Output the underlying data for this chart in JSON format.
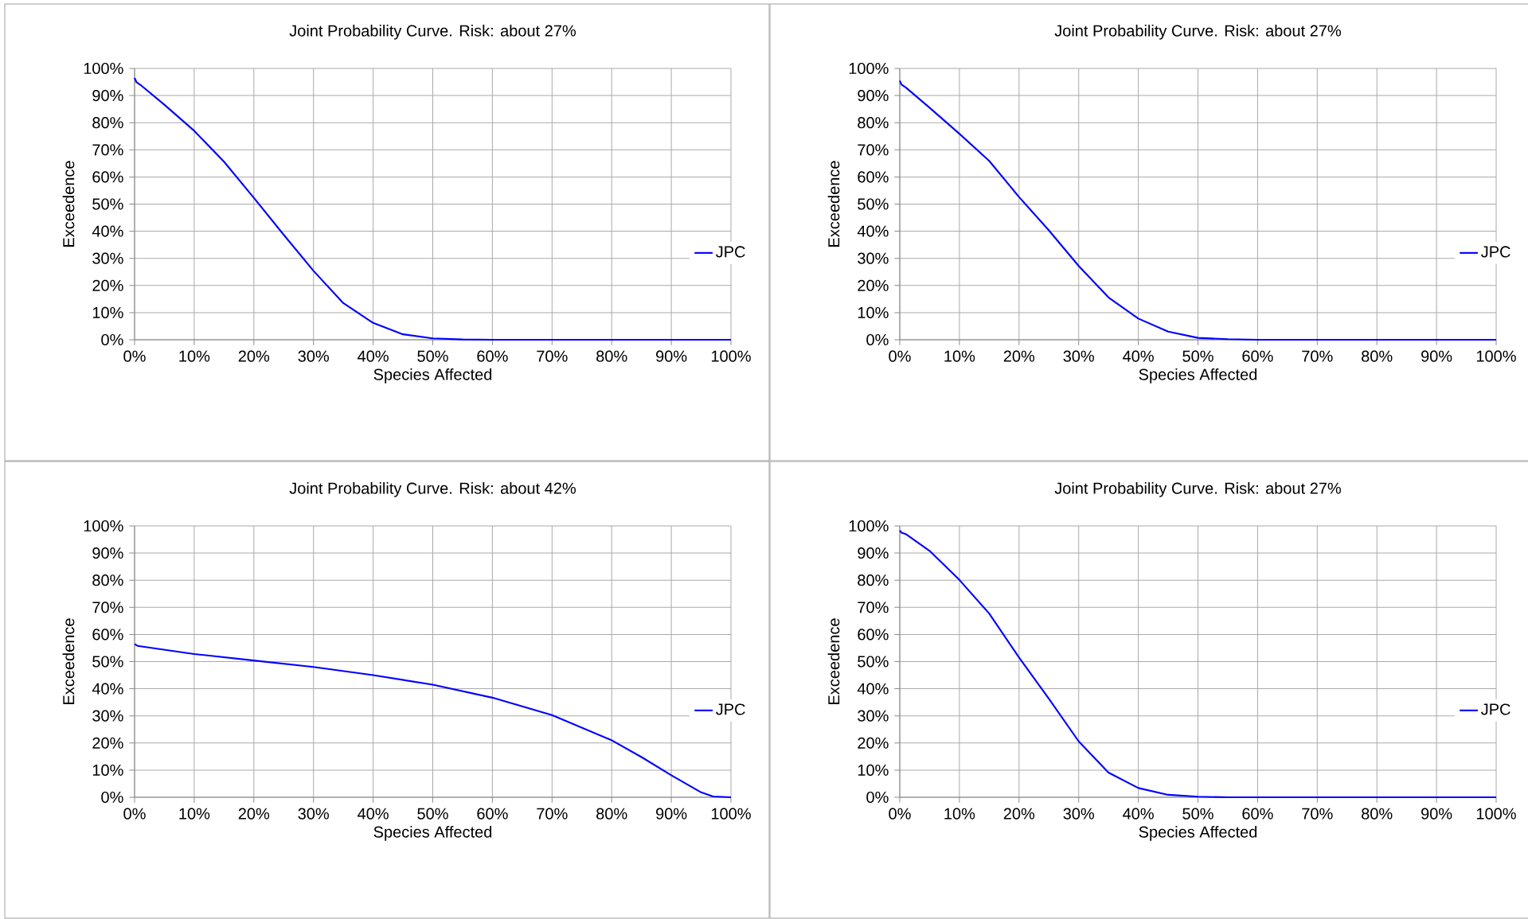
{
  "chart_data": [
    {
      "type": "line",
      "title": "Joint Probability Curve. Risk: about 27%",
      "xlabel": "Species Affected",
      "ylabel": "Exceedence",
      "xlim": [
        0,
        100
      ],
      "ylim": [
        0,
        100
      ],
      "xticks": [
        {
          "value": 0,
          "label": "0%"
        },
        {
          "value": 10,
          "label": "10%"
        },
        {
          "value": 20,
          "label": "20%"
        },
        {
          "value": 30,
          "label": "30%"
        },
        {
          "value": 40,
          "label": "40%"
        },
        {
          "value": 50,
          "label": "50%"
        },
        {
          "value": 60,
          "label": "60%"
        },
        {
          "value": 70,
          "label": "70%"
        },
        {
          "value": 80,
          "label": "80%"
        },
        {
          "value": 90,
          "label": "90%"
        },
        {
          "value": 100,
          "label": "100%"
        }
      ],
      "yticks": [
        {
          "value": 0,
          "label": "0%"
        },
        {
          "value": 10,
          "label": "10%"
        },
        {
          "value": 20,
          "label": "20%"
        },
        {
          "value": 30,
          "label": "30%"
        },
        {
          "value": 40,
          "label": "40%"
        },
        {
          "value": 50,
          "label": "50%"
        },
        {
          "value": 60,
          "label": "60%"
        },
        {
          "value": 70,
          "label": "70%"
        },
        {
          "value": 80,
          "label": "80%"
        },
        {
          "value": 90,
          "label": "90%"
        },
        {
          "value": 100,
          "label": "100%"
        }
      ],
      "grid": true,
      "legend": "right",
      "series": [
        {
          "name": "JPC",
          "color": "#0000ff",
          "x": [
            0,
            0.3,
            1,
            5,
            10,
            15,
            20,
            25,
            30,
            35,
            40,
            45,
            50,
            55,
            60,
            70,
            80,
            90,
            100
          ],
          "values": [
            96.5,
            95,
            93.9,
            86.6,
            77,
            65.6,
            52.3,
            38.7,
            25.4,
            13.5,
            6.2,
            2,
            0.5,
            0.1,
            0,
            0,
            0,
            0,
            0
          ]
        }
      ]
    },
    {
      "type": "line",
      "title": "Joint Probability Curve. Risk: about 27%",
      "xlabel": "Species Affected",
      "ylabel": "Exceedence",
      "xlim": [
        0,
        100
      ],
      "ylim": [
        0,
        100
      ],
      "xticks": [
        {
          "value": 0,
          "label": "0%"
        },
        {
          "value": 10,
          "label": "10%"
        },
        {
          "value": 20,
          "label": "20%"
        },
        {
          "value": 30,
          "label": "30%"
        },
        {
          "value": 40,
          "label": "40%"
        },
        {
          "value": 50,
          "label": "50%"
        },
        {
          "value": 60,
          "label": "60%"
        },
        {
          "value": 70,
          "label": "70%"
        },
        {
          "value": 80,
          "label": "80%"
        },
        {
          "value": 90,
          "label": "90%"
        },
        {
          "value": 100,
          "label": "100%"
        }
      ],
      "yticks": [
        {
          "value": 0,
          "label": "0%"
        },
        {
          "value": 10,
          "label": "10%"
        },
        {
          "value": 20,
          "label": "20%"
        },
        {
          "value": 30,
          "label": "30%"
        },
        {
          "value": 40,
          "label": "40%"
        },
        {
          "value": 50,
          "label": "50%"
        },
        {
          "value": 60,
          "label": "60%"
        },
        {
          "value": 70,
          "label": "70%"
        },
        {
          "value": 80,
          "label": "80%"
        },
        {
          "value": 90,
          "label": "90%"
        },
        {
          "value": 100,
          "label": "100%"
        }
      ],
      "grid": true,
      "legend": "right",
      "series": [
        {
          "name": "JPC",
          "color": "#0000ff",
          "x": [
            0,
            0.3,
            1,
            5,
            10,
            15,
            20,
            25,
            30,
            35,
            40,
            45,
            50,
            55,
            60,
            70,
            80,
            90,
            100
          ],
          "values": [
            95.5,
            94,
            93,
            85.5,
            75.9,
            65.9,
            52.6,
            40.3,
            27.2,
            15.6,
            7.8,
            3,
            0.7,
            0.2,
            0,
            0,
            0,
            0,
            0
          ]
        }
      ]
    },
    {
      "type": "line",
      "title": "Joint Probability Curve. Risk: about 42%",
      "xlabel": "Species Affected",
      "ylabel": "Exceedence",
      "xlim": [
        0,
        100
      ],
      "ylim": [
        0,
        100
      ],
      "xticks": [
        {
          "value": 0,
          "label": "0%"
        },
        {
          "value": 10,
          "label": "10%"
        },
        {
          "value": 20,
          "label": "20%"
        },
        {
          "value": 30,
          "label": "30%"
        },
        {
          "value": 40,
          "label": "40%"
        },
        {
          "value": 50,
          "label": "50%"
        },
        {
          "value": 60,
          "label": "60%"
        },
        {
          "value": 70,
          "label": "70%"
        },
        {
          "value": 80,
          "label": "80%"
        },
        {
          "value": 90,
          "label": "90%"
        },
        {
          "value": 100,
          "label": "100%"
        }
      ],
      "yticks": [
        {
          "value": 0,
          "label": "0%"
        },
        {
          "value": 10,
          "label": "10%"
        },
        {
          "value": 20,
          "label": "20%"
        },
        {
          "value": 30,
          "label": "30%"
        },
        {
          "value": 40,
          "label": "40%"
        },
        {
          "value": 50,
          "label": "50%"
        },
        {
          "value": 60,
          "label": "60%"
        },
        {
          "value": 70,
          "label": "70%"
        },
        {
          "value": 80,
          "label": "80%"
        },
        {
          "value": 90,
          "label": "90%"
        },
        {
          "value": 100,
          "label": "100%"
        }
      ],
      "grid": true,
      "legend": "right",
      "series": [
        {
          "name": "JPC",
          "color": "#0000ff",
          "x": [
            0,
            0.5,
            10,
            20,
            30,
            40,
            50,
            60,
            70,
            80,
            85,
            90,
            95,
            97,
            100
          ],
          "values": [
            56.5,
            55.8,
            52.8,
            50.4,
            48,
            45,
            41.5,
            36.7,
            30.3,
            21,
            14.8,
            8.1,
            1.8,
            0.3,
            0
          ]
        }
      ]
    },
    {
      "type": "line",
      "title": "Joint Probability Curve. Risk: about 27%",
      "xlabel": "Species Affected",
      "ylabel": "Exceedence",
      "xlim": [
        0,
        100
      ],
      "ylim": [
        0,
        100
      ],
      "xticks": [
        {
          "value": 0,
          "label": "0%"
        },
        {
          "value": 10,
          "label": "10%"
        },
        {
          "value": 20,
          "label": "20%"
        },
        {
          "value": 30,
          "label": "30%"
        },
        {
          "value": 40,
          "label": "40%"
        },
        {
          "value": 50,
          "label": "50%"
        },
        {
          "value": 60,
          "label": "60%"
        },
        {
          "value": 70,
          "label": "70%"
        },
        {
          "value": 80,
          "label": "80%"
        },
        {
          "value": 90,
          "label": "90%"
        },
        {
          "value": 100,
          "label": "100%"
        }
      ],
      "yticks": [
        {
          "value": 0,
          "label": "0%"
        },
        {
          "value": 10,
          "label": "10%"
        },
        {
          "value": 20,
          "label": "20%"
        },
        {
          "value": 30,
          "label": "30%"
        },
        {
          "value": 40,
          "label": "40%"
        },
        {
          "value": 50,
          "label": "50%"
        },
        {
          "value": 60,
          "label": "60%"
        },
        {
          "value": 70,
          "label": "70%"
        },
        {
          "value": 80,
          "label": "80%"
        },
        {
          "value": 90,
          "label": "90%"
        },
        {
          "value": 100,
          "label": "100%"
        }
      ],
      "grid": true,
      "legend": "right",
      "series": [
        {
          "name": "JPC",
          "color": "#0000ff",
          "x": [
            0,
            0.3,
            1,
            5,
            10,
            15,
            20,
            25,
            30,
            35,
            40,
            45,
            50,
            55,
            60,
            70,
            80,
            90,
            100
          ],
          "values": [
            98.3,
            97.5,
            97,
            90.8,
            80.1,
            67.7,
            51.5,
            36.3,
            20.6,
            9.1,
            3.4,
            0.9,
            0.2,
            0,
            0,
            0,
            0,
            0,
            0
          ]
        }
      ]
    }
  ]
}
